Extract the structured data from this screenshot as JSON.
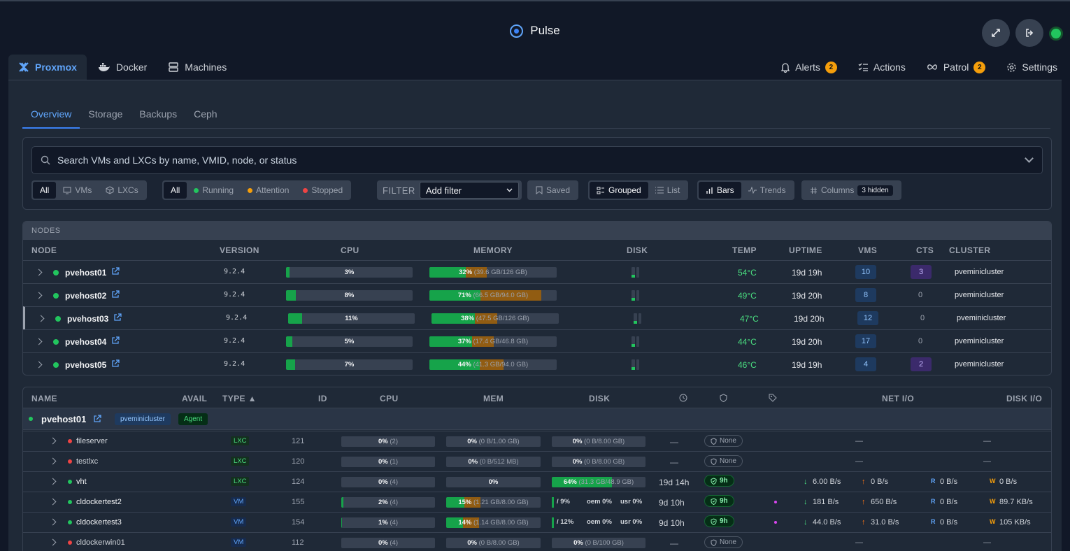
{
  "app": {
    "title": "Pulse",
    "status_color": "#22c55e"
  },
  "top_tabs": [
    {
      "label": "Proxmox",
      "icon": "proxmox-icon",
      "active": true
    },
    {
      "label": "Docker",
      "icon": "docker-icon"
    },
    {
      "label": "Machines",
      "icon": "server-icon"
    }
  ],
  "right_nav": {
    "alerts": {
      "label": "Alerts",
      "count": "2"
    },
    "actions": {
      "label": "Actions"
    },
    "patrol": {
      "label": "Patrol",
      "count": "2"
    },
    "settings": {
      "label": "Settings"
    }
  },
  "sub_tabs": [
    "Overview",
    "Storage",
    "Backups",
    "Ceph"
  ],
  "search": {
    "placeholder": "Search VMs and LXCs by name, VMID, node, or status"
  },
  "filters": {
    "type": [
      "All",
      "VMs",
      "LXCs"
    ],
    "status": [
      "All",
      "Running",
      "Attention",
      "Stopped"
    ],
    "status_colors": [
      "#22c55e",
      "#f59e0b",
      "#ef4444"
    ],
    "filter_label": "FILTER",
    "filter_select": "Add filter",
    "saved": "Saved",
    "view": [
      "Grouped",
      "List"
    ],
    "mode": [
      "Bars",
      "Trends"
    ],
    "columns": "Columns",
    "columns_hidden": "3 hidden"
  },
  "nodes": {
    "section_label": "NODES",
    "columns": [
      "NODE",
      "VERSION",
      "CPU",
      "MEMORY",
      "DISK",
      "TEMP",
      "UPTIME",
      "VMS",
      "CTS",
      "CLUSTER"
    ],
    "rows": [
      {
        "name": "pvehost01",
        "version": "9.2.4",
        "cpu": "3%",
        "cpu_pct": 3,
        "mem_pct_label": "32%",
        "mem_detail": "(39.6 GB/126 GB)",
        "mem_pct": 32,
        "temp": "54°C",
        "uptime": "19d 19h",
        "vms": "10",
        "cts": "3",
        "cluster": "pveminicluster"
      },
      {
        "name": "pvehost02",
        "version": "9.2.4",
        "cpu": "8%",
        "cpu_pct": 8,
        "mem_pct_label": "71%",
        "mem_detail": "(66.5 GB/94.0 GB)",
        "mem_pct": 71,
        "temp": "49°C",
        "uptime": "19d 20h",
        "vms": "8",
        "cts": "0",
        "cluster": "pveminicluster"
      },
      {
        "name": "pvehost03",
        "version": "9.2.4",
        "cpu": "11%",
        "cpu_pct": 11,
        "mem_pct_label": "38%",
        "mem_detail": "(47.5 GB/126 GB)",
        "mem_pct": 38,
        "temp": "47°C",
        "uptime": "19d 20h",
        "vms": "12",
        "cts": "0",
        "cluster": "pveminicluster"
      },
      {
        "name": "pvehost04",
        "version": "9.2.4",
        "cpu": "5%",
        "cpu_pct": 5,
        "mem_pct_label": "37%",
        "mem_detail": "(17.4 GB/46.8 GB)",
        "mem_pct": 37,
        "temp": "44°C",
        "uptime": "19d 20h",
        "vms": "17",
        "cts": "0",
        "cluster": "pveminicluster"
      },
      {
        "name": "pvehost05",
        "version": "9.2.4",
        "cpu": "7%",
        "cpu_pct": 7,
        "mem_pct_label": "44%",
        "mem_detail": "(41.3 GB/94.0 GB)",
        "mem_pct": 44,
        "temp": "46°C",
        "uptime": "19d 19h",
        "vms": "4",
        "cts": "2",
        "cluster": "pveminicluster"
      }
    ]
  },
  "guests": {
    "columns": [
      "NAME",
      "AVAIL",
      "TYPE ▲",
      "ID",
      "CPU",
      "MEM",
      "DISK",
      "NET I/O",
      "DISK I/O"
    ],
    "group": {
      "name": "pvehost01",
      "cluster": "pveminicluster",
      "agent": "Agent"
    },
    "rows": [
      {
        "name": "fileserver",
        "status": "stopped",
        "type": "LXC",
        "id": "121",
        "cpu": "0%",
        "cpu_extra": "(2)",
        "mem": "0%",
        "mem_extra": "(0 B/1.00 GB)",
        "disk": "0%",
        "disk_extra": "(0 B/8.00 GB)",
        "uptime": "—",
        "backup": "None",
        "net_in": "—",
        "disk_io": "—"
      },
      {
        "name": "testlxc",
        "status": "stopped",
        "type": "LXC",
        "id": "120",
        "cpu": "0%",
        "cpu_extra": "(1)",
        "mem": "0%",
        "mem_extra": "(0 B/512 MB)",
        "disk": "0%",
        "disk_extra": "(0 B/8.00 GB)",
        "uptime": "—",
        "backup": "None",
        "net_in": "—",
        "disk_io": "—"
      },
      {
        "name": "vht",
        "status": "running",
        "type": "LXC",
        "id": "124",
        "cpu": "0%",
        "cpu_extra": "(4)",
        "mem": "0%",
        "mem_extra": "",
        "disk": "64%",
        "disk_extra": "(31.3 GB/48.9 GB)",
        "disk_pct": 64,
        "uptime": "19d 14h",
        "backup": "9h",
        "net_in": "6.00 B/s",
        "net_out": "0 B/s",
        "disk_r": "0 B/s",
        "disk_w": "0 B/s"
      },
      {
        "name": "cldockertest2",
        "status": "running",
        "type": "VM",
        "id": "155",
        "cpu": "2%",
        "cpu_extra": "(4)",
        "cpu_pct": 2,
        "mem": "15%",
        "mem_extra": "(1.21 GB/8.00 GB)",
        "mem_pct": 15,
        "disk_fs": "/ 9%",
        "disk_oem": "oem 0%",
        "disk_usr": "usr 0%",
        "uptime": "9d 10h",
        "backup": "9h",
        "net_in": "181 B/s",
        "net_out": "650 B/s",
        "disk_r": "0 B/s",
        "disk_w": "89.7 KB/s"
      },
      {
        "name": "cldockertest3",
        "status": "running",
        "type": "VM",
        "id": "154",
        "cpu": "1%",
        "cpu_extra": "(4)",
        "cpu_pct": 1,
        "mem": "14%",
        "mem_extra": "(1.14 GB/8.00 GB)",
        "mem_pct": 14,
        "disk_fs": "/ 12%",
        "disk_oem": "oem 0%",
        "disk_usr": "usr 0%",
        "uptime": "9d 10h",
        "backup": "9h",
        "net_in": "44.0 B/s",
        "net_out": "31.0 B/s",
        "disk_r": "0 B/s",
        "disk_w": "105 KB/s"
      },
      {
        "name": "cldockerwin01",
        "status": "stopped",
        "type": "VM",
        "id": "112",
        "cpu": "0%",
        "cpu_extra": "(4)",
        "mem": "0%",
        "mem_extra": "(0 B/8.00 GB)",
        "disk": "0%",
        "disk_extra": "(0 B/100 GB)",
        "uptime": "—",
        "backup": "None",
        "net_in": "—",
        "disk_io": "—"
      }
    ]
  }
}
